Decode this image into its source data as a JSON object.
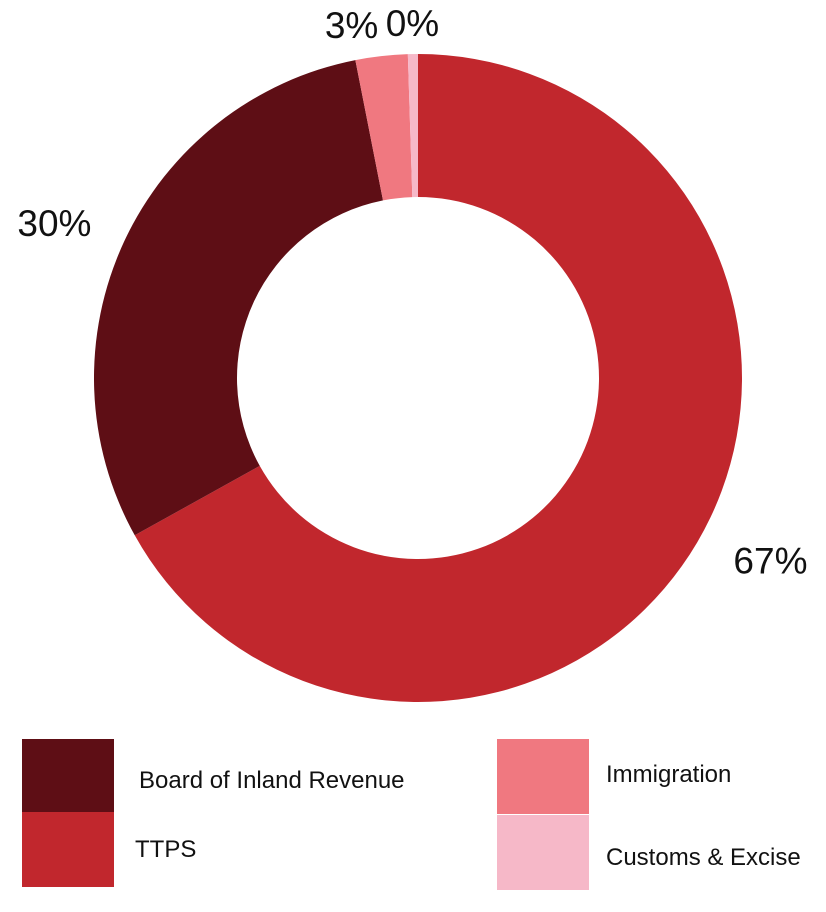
{
  "chart_data": {
    "type": "pie",
    "donut": true,
    "categories": [
      "TTPS",
      "Board of Inland Revenue",
      "Immigration",
      "Customs & Excise"
    ],
    "values": [
      67,
      30,
      2.6,
      0.5
    ],
    "data_labels": [
      "67%",
      "30%",
      "3%",
      "0%"
    ],
    "colors": [
      "#c1272d",
      "#5e0e15",
      "#f07880",
      "#f6b8c8"
    ],
    "legend": {
      "placement": "bottom",
      "entries": [
        "Board of Inland Revenue",
        "TTPS",
        "Immigration",
        "Customs & Excise"
      ]
    }
  }
}
